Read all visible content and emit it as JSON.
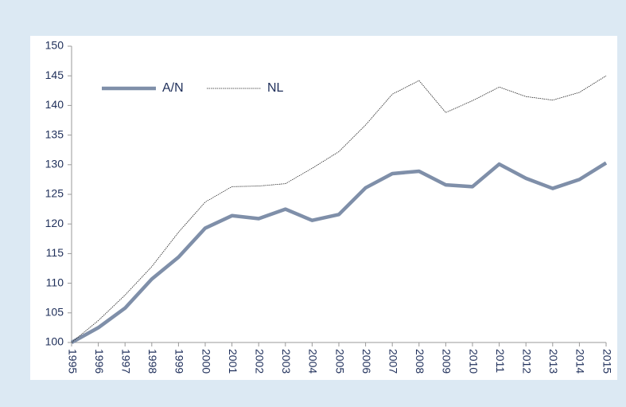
{
  "chart_data": {
    "type": "line",
    "categories": [
      "1995",
      "1996",
      "1997",
      "1998",
      "1999",
      "2000",
      "2001",
      "2002",
      "2003",
      "2004",
      "2005",
      "2006",
      "2007",
      "2008",
      "2009",
      "2010",
      "2011",
      "2012",
      "2013",
      "2014",
      "2015"
    ],
    "series": [
      {
        "name": "A/N",
        "color": "#7f8fa9",
        "values": [
          100,
          102.5,
          105.8,
          110.7,
          114.4,
          119.3,
          121.4,
          120.9,
          122.5,
          120.6,
          121.6,
          126.1,
          128.5,
          128.9,
          126.6,
          126.3,
          130.1,
          127.7,
          126.0,
          127.5,
          130.3
        ]
      },
      {
        "name": "NL",
        "color": "#222222",
        "values": [
          100,
          103.7,
          108.0,
          112.8,
          118.6,
          123.7,
          126.3,
          126.4,
          126.8,
          129.4,
          132.2,
          136.7,
          141.9,
          144.2,
          138.8,
          140.8,
          143.1,
          141.5,
          140.9,
          142.2,
          145.0
        ]
      }
    ],
    "ylim": [
      100,
      150
    ],
    "yticks": [
      100,
      105,
      110,
      115,
      120,
      125,
      130,
      135,
      140,
      145,
      150
    ],
    "legend": "upper left"
  }
}
